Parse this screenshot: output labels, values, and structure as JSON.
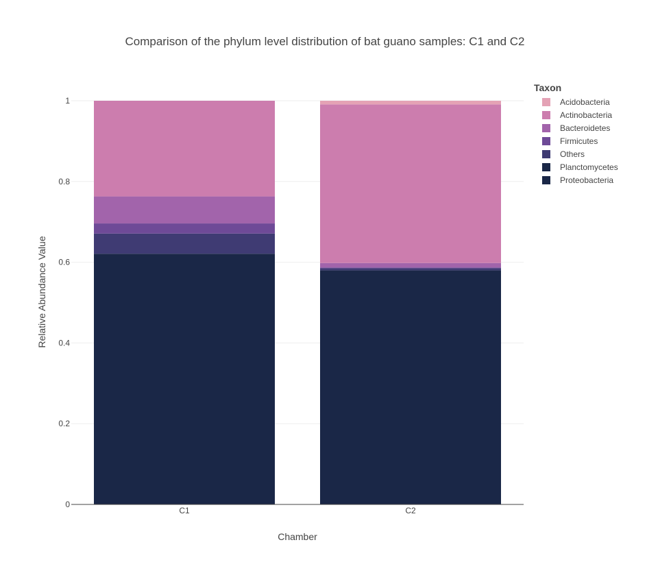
{
  "chart_data": {
    "type": "bar",
    "stacked": true,
    "title": "Comparison of the phylum level distribution of bat guano samples: C1 and C2",
    "xlabel": "Chamber",
    "ylabel": "Relative Abundance Value",
    "categories": [
      "C1",
      "C2"
    ],
    "ylim": [
      0,
      1
    ],
    "yticks": [
      0,
      0.2,
      0.4,
      0.6,
      0.8,
      1
    ],
    "ytick_labels": [
      "0",
      "0.2",
      "0.4",
      "0.6",
      "0.8",
      "1"
    ],
    "grid": true,
    "legend": {
      "title": "Taxon",
      "placement": "right"
    },
    "series": [
      {
        "name": "Acidobacteria",
        "color": "#e4a2b5",
        "values": [
          0.0,
          0.009
        ]
      },
      {
        "name": "Actinobacteria",
        "color": "#cc7dae",
        "values": [
          0.237,
          0.393
        ]
      },
      {
        "name": "Bacteroidetes",
        "color": "#a264ab",
        "values": [
          0.067,
          0.011
        ]
      },
      {
        "name": "Firmicutes",
        "color": "#6e4a97",
        "values": [
          0.025,
          0.002
        ]
      },
      {
        "name": "Others",
        "color": "#3f3b73",
        "values": [
          0.05,
          0.005
        ]
      },
      {
        "name": "Planctomycetes",
        "color": "#1a2747",
        "values": [
          0.0,
          0.0
        ]
      },
      {
        "name": "Proteobacteria",
        "color": "#1a2747",
        "values": [
          0.621,
          0.58
        ]
      }
    ]
  }
}
